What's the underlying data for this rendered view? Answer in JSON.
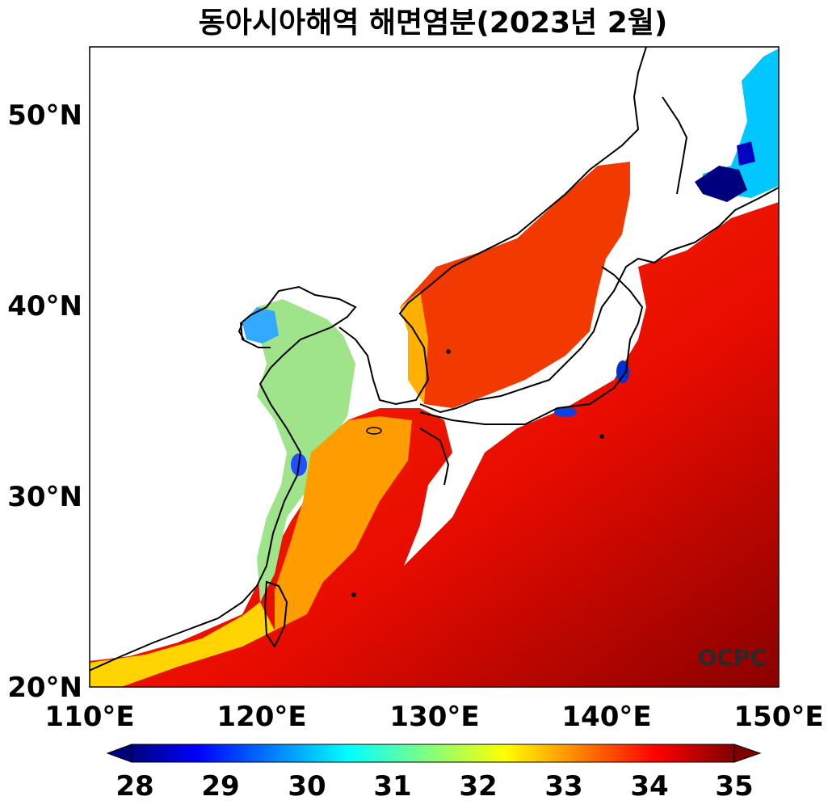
{
  "title": "동아시아해역 해면염분(2023년 2월)",
  "watermark": "OCPC",
  "map": {
    "lon_range": [
      110,
      150
    ],
    "lat_range": [
      20,
      53.5
    ],
    "x_ticks": [
      {
        "value": 110,
        "label": "110°E"
      },
      {
        "value": 120,
        "label": "120°E"
      },
      {
        "value": 130,
        "label": "130°E"
      },
      {
        "value": 140,
        "label": "140°E"
      },
      {
        "value": 150,
        "label": "150°E"
      }
    ],
    "y_ticks": [
      {
        "value": 20,
        "label": "20°N"
      },
      {
        "value": 30,
        "label": "30°N"
      },
      {
        "value": 40,
        "label": "40°N"
      },
      {
        "value": 50,
        "label": "50°N"
      }
    ]
  },
  "colorbar": {
    "min": 28,
    "max": 35,
    "extend": "both",
    "colormap": "jet",
    "ticks": [
      {
        "value": 28,
        "label": "28"
      },
      {
        "value": 29,
        "label": "29"
      },
      {
        "value": 30,
        "label": "30"
      },
      {
        "value": 31,
        "label": "31"
      },
      {
        "value": 32,
        "label": "32"
      },
      {
        "value": 33,
        "label": "33"
      },
      {
        "value": 34,
        "label": "34"
      },
      {
        "value": 35,
        "label": "35"
      }
    ],
    "colors": {
      "low": "#00007f",
      "blue": "#0000ff",
      "cyan": "#00ffff",
      "yellow": "#ffff00",
      "red": "#ff0000",
      "high": "#7f0000"
    }
  }
}
